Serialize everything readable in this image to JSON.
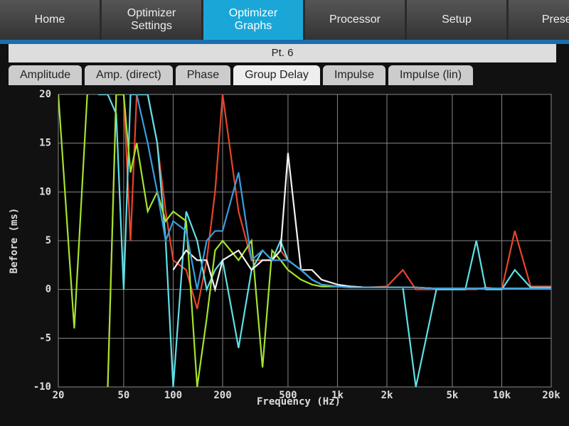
{
  "nav_tabs": [
    "Home",
    "Optimizer Settings",
    "Optimizer Graphs",
    "Processor",
    "Setup",
    "Preset"
  ],
  "active_nav": 2,
  "subheader": "Pt. 6",
  "graph_tabs": [
    "Amplitude",
    "Amp. (direct)",
    "Phase",
    "Group Delay",
    "Impulse",
    "Impulse (lin)"
  ],
  "active_graph": 3,
  "chart_data": {
    "type": "line",
    "xlabel": "Frequency (Hz)",
    "ylabel": "Before (ms)",
    "xscale": "log",
    "grid": true,
    "xlim": [
      20,
      20000
    ],
    "ylim": [
      -10,
      20
    ],
    "xticks": [
      20,
      50,
      100,
      200,
      500,
      {
        "value": 1000,
        "label": "1k"
      },
      {
        "value": 2000,
        "label": "2k"
      },
      {
        "value": 5000,
        "label": "5k"
      },
      {
        "value": 10000,
        "label": "10k"
      },
      {
        "value": 20000,
        "label": "20k"
      }
    ],
    "yticks": [
      -10,
      -5,
      0,
      5,
      10,
      15,
      20
    ],
    "x": [
      20,
      25,
      30,
      35,
      40,
      45,
      50,
      55,
      60,
      70,
      80,
      90,
      100,
      120,
      140,
      160,
      180,
      200,
      250,
      300,
      350,
      400,
      450,
      500,
      600,
      700,
      800,
      1000,
      1200,
      1500,
      2000,
      2500,
      3000,
      4000,
      5000,
      6000,
      7000,
      8000,
      10000,
      12000,
      15000,
      20000
    ],
    "series": [
      {
        "color": "#e8452a",
        "values": [
          null,
          null,
          null,
          null,
          -10,
          20,
          20,
          5,
          20,
          20,
          15,
          8,
          3,
          2,
          -2,
          3,
          10,
          20,
          8,
          3,
          3,
          3,
          4,
          3,
          2,
          1,
          0.5,
          0.3,
          0.2,
          0.2,
          0.3,
          2,
          0,
          0,
          0,
          0,
          0,
          0.2,
          0,
          6,
          0.3,
          0.3
        ]
      },
      {
        "color": "#5fe0e8",
        "values": [
          null,
          null,
          null,
          20,
          20,
          18,
          0,
          20,
          20,
          20,
          15,
          5,
          -10,
          8,
          5,
          0,
          2,
          3,
          -6,
          2,
          4,
          3,
          5,
          3,
          2,
          1,
          0.5,
          0.3,
          0.3,
          0.2,
          0.2,
          0.2,
          -10,
          0,
          0,
          0,
          5,
          0,
          0,
          2,
          0.2,
          0.2
        ]
      },
      {
        "color": "#a6e22e",
        "values": [
          20,
          -4,
          20,
          null,
          -10,
          20,
          20,
          12,
          15,
          8,
          10,
          7,
          8,
          7,
          -10,
          -3,
          4,
          5,
          3,
          5,
          -8,
          4,
          3,
          2,
          1,
          0.5,
          0.3,
          0.3,
          0.3,
          0.2,
          0.2,
          0.2,
          0.2,
          0.1,
          0.1,
          0.1,
          0.1,
          0.1,
          0.1,
          0.1,
          0.1,
          0.1
        ]
      },
      {
        "color": "#f2f2f2",
        "values": [
          null,
          null,
          null,
          null,
          null,
          null,
          null,
          null,
          null,
          null,
          null,
          null,
          2,
          4,
          3,
          3,
          0,
          3,
          4,
          2,
          3,
          3,
          4,
          14,
          2,
          2,
          1,
          0.5,
          0.3,
          0.2,
          0.2,
          0.2,
          0.2,
          0.1,
          0.1,
          0.1,
          0.1,
          0.1,
          0.1,
          0.1,
          0.1,
          0.1
        ]
      },
      {
        "color": "#3a9de0",
        "values": [
          null,
          null,
          null,
          null,
          null,
          null,
          null,
          null,
          20,
          15,
          10,
          5,
          7,
          6,
          0,
          5,
          6,
          6,
          12,
          3,
          4,
          3,
          3,
          3,
          2,
          1,
          0.5,
          0.3,
          0.2,
          0.2,
          0.2,
          0.2,
          0.2,
          0.1,
          0.1,
          0.1,
          0.1,
          0.1,
          0.1,
          0.1,
          0.1,
          0.1
        ]
      }
    ]
  }
}
